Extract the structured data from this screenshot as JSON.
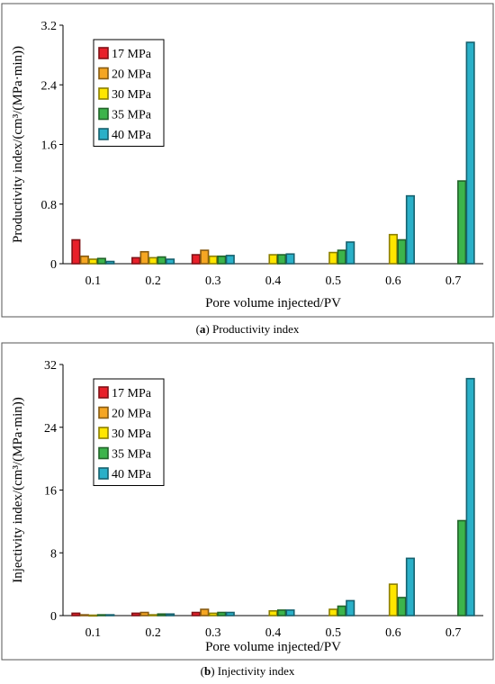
{
  "chart_data": [
    {
      "type": "bar",
      "panel_label": "a",
      "caption": "Productivity index",
      "xlabel": "Pore volume injected/PV",
      "ylabel": "Productivity index/(cm³/(MPa·min))",
      "categories": [
        "0.1",
        "0.2",
        "0.3",
        "0.4",
        "0.5",
        "0.6",
        "0.7"
      ],
      "ylim": [
        0,
        3.2
      ],
      "yticks": [
        "0",
        "0.8",
        "1.6",
        "2.4",
        "3.2"
      ],
      "grid": false,
      "legend_position": "top-left",
      "series": [
        {
          "name": "17 MPa",
          "color": "#e8202a",
          "values": [
            0.32,
            0.08,
            0.12,
            null,
            null,
            null,
            null
          ]
        },
        {
          "name": "20 MPa",
          "color": "#f5a623",
          "values": [
            0.1,
            0.16,
            0.18,
            null,
            null,
            null,
            null
          ]
        },
        {
          "name": "30 MPa",
          "color": "#ffe600",
          "values": [
            0.06,
            0.08,
            0.1,
            0.12,
            0.15,
            0.39,
            null
          ]
        },
        {
          "name": "35 MPa",
          "color": "#3cb44b",
          "values": [
            0.07,
            0.09,
            0.1,
            0.12,
            0.18,
            0.32,
            1.11
          ]
        },
        {
          "name": "40 MPa",
          "color": "#2ab0c8",
          "values": [
            0.03,
            0.06,
            0.11,
            0.13,
            0.29,
            0.91,
            2.97
          ]
        }
      ]
    },
    {
      "type": "bar",
      "panel_label": "b",
      "caption": "Injectivity index",
      "xlabel": "Pore volume injected/PV",
      "ylabel": "Injectivity index/(cm³/(MPa·min))",
      "categories": [
        "0.1",
        "0.2",
        "0.3",
        "0.4",
        "0.5",
        "0.6",
        "0.7"
      ],
      "ylim": [
        0,
        32
      ],
      "yticks": [
        "0",
        "8",
        "16",
        "24",
        "32"
      ],
      "grid": false,
      "legend_position": "top-left",
      "series": [
        {
          "name": "17 MPa",
          "color": "#e8202a",
          "values": [
            0.3,
            0.3,
            0.4,
            null,
            null,
            null,
            null
          ]
        },
        {
          "name": "20 MPa",
          "color": "#f5a623",
          "values": [
            0.1,
            0.4,
            0.8,
            null,
            null,
            null,
            null
          ]
        },
        {
          "name": "30 MPa",
          "color": "#ffe600",
          "values": [
            0.05,
            0.1,
            0.3,
            0.6,
            0.8,
            4.0,
            null
          ]
        },
        {
          "name": "35 MPa",
          "color": "#3cb44b",
          "values": [
            0.1,
            0.2,
            0.4,
            0.7,
            1.2,
            2.3,
            12.1
          ]
        },
        {
          "name": "40 MPa",
          "color": "#2ab0c8",
          "values": [
            0.1,
            0.2,
            0.4,
            0.7,
            1.9,
            7.3,
            30.2
          ]
        }
      ]
    }
  ]
}
